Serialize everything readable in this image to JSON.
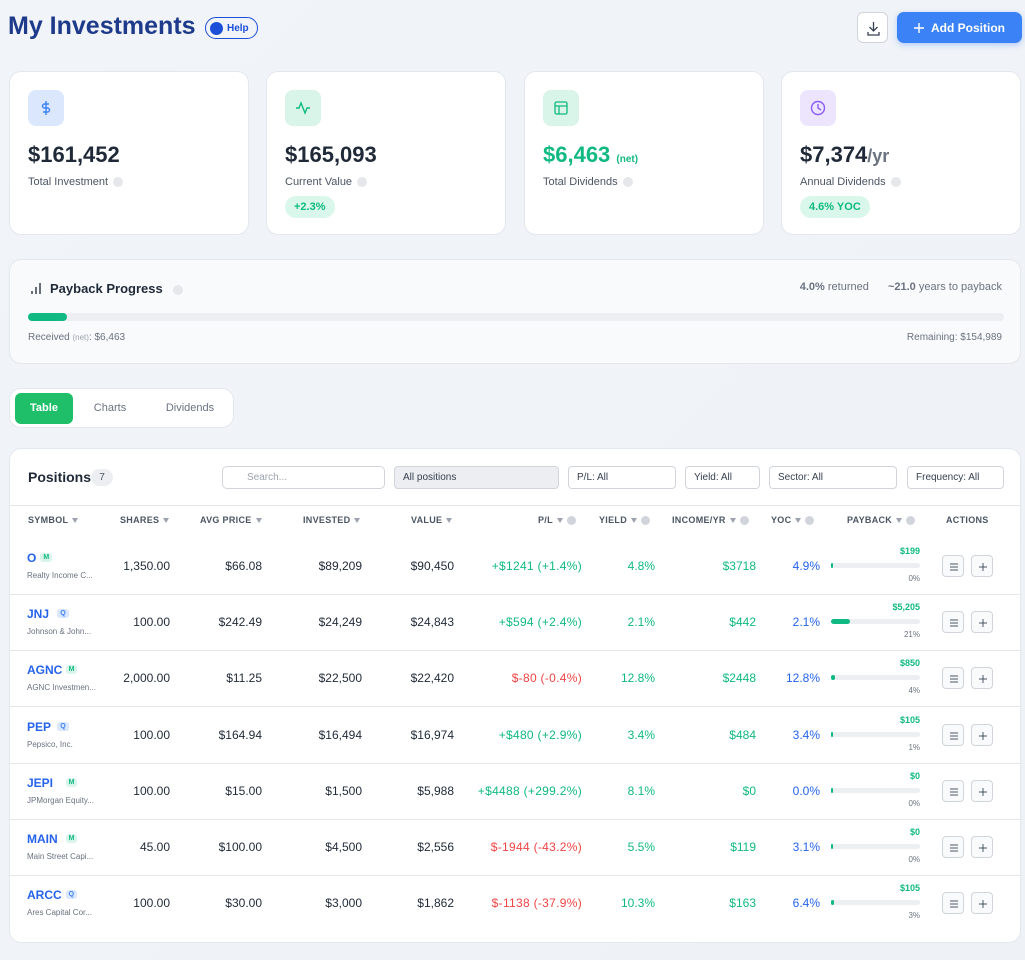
{
  "header": {
    "title": "My Investments",
    "help": "Help",
    "add_button": "Add Position"
  },
  "cards": [
    {
      "value": "$161,452",
      "label": "Total Investment"
    },
    {
      "value": "$165,093",
      "label": "Current Value",
      "badge": "+2.3%"
    },
    {
      "value": "$6,463",
      "suffix": "(net)",
      "label": "Total Dividends"
    },
    {
      "value": "$7,374",
      "suffix": "/yr",
      "label": "Annual Dividends",
      "badge": "4.6% YOC"
    }
  ],
  "payback": {
    "title": "Payback Progress",
    "returned": {
      "value": 4.0,
      "label": "4.0%"
    },
    "returned_text": "returned",
    "years": "~21.0",
    "years_text": "years to payback",
    "received_label": "Received",
    "received_net": "(net)",
    "received_value": ": $6,463",
    "remaining": "Remaining: $154,989"
  },
  "tabs": [
    "Table",
    "Charts",
    "Dividends"
  ],
  "positions": {
    "title": "Positions",
    "count": "7",
    "search": "Search...",
    "filters": [
      "All positions",
      "P/L: All",
      "Yield: All",
      "Sector: All",
      "Frequency: All"
    ],
    "columns": [
      "SYMBOL",
      "SHARES",
      "AVG PRICE",
      "INVESTED",
      "VALUE",
      "P/L",
      "YIELD",
      "INCOME/YR",
      "YOC",
      "PAYBACK",
      "ACTIONS"
    ],
    "rows": [
      {
        "symbol": "O",
        "freq": "M",
        "name": "Realty Income C...",
        "shares": "1,350.00",
        "avg_price": "$66.08",
        "invested": "$89,209",
        "value": "$90,450",
        "pl": "+$1241 (+1.4%)",
        "yield": "4.8%",
        "income": "$3718",
        "yoc": "4.9%",
        "payback_amount": "$199",
        "payback_pct": {
          "value": 0,
          "label": "0%"
        }
      },
      {
        "symbol": "JNJ",
        "freq": "Q",
        "name": "Johnson & John...",
        "shares": "100.00",
        "avg_price": "$242.49",
        "invested": "$24,249",
        "value": "$24,843",
        "pl": "+$594 (+2.4%)",
        "yield": "2.1%",
        "income": "$442",
        "yoc": "2.1%",
        "payback_amount": "$5,205",
        "payback_pct": {
          "value": 21,
          "label": "21%"
        }
      },
      {
        "symbol": "AGNC",
        "freq": "M",
        "name": "AGNC Investmen...",
        "shares": "2,000.00",
        "avg_price": "$11.25",
        "invested": "$22,500",
        "value": "$22,420",
        "pl": "$-80 (-0.4%)",
        "yield": "12.8%",
        "income": "$2448",
        "yoc": "12.8%",
        "payback_amount": "$850",
        "payback_pct": {
          "value": 4,
          "label": "4%"
        }
      },
      {
        "symbol": "PEP",
        "freq": "Q",
        "name": "Pepsico, Inc.",
        "shares": "100.00",
        "avg_price": "$164.94",
        "invested": "$16,494",
        "value": "$16,974",
        "pl": "+$480 (+2.9%)",
        "yield": "3.4%",
        "income": "$484",
        "yoc": "3.4%",
        "payback_amount": "$105",
        "payback_pct": {
          "value": 1,
          "label": "1%"
        }
      },
      {
        "symbol": "JEPI",
        "freq": "M",
        "name": "JPMorgan Equity...",
        "shares": "100.00",
        "avg_price": "$15.00",
        "invested": "$1,500",
        "value": "$5,988",
        "pl": "+$4488 (+299.2%)",
        "yield": "8.1%",
        "income": "$0",
        "yoc": "0.0%",
        "payback_amount": "$0",
        "payback_pct": {
          "value": 0,
          "label": "0%"
        }
      },
      {
        "symbol": "MAIN",
        "freq": "M",
        "name": "Main Street Capi...",
        "shares": "45.00",
        "avg_price": "$100.00",
        "invested": "$4,500",
        "value": "$2,556",
        "pl": "$-1944 (-43.2%)",
        "yield": "5.5%",
        "income": "$119",
        "yoc": "3.1%",
        "payback_amount": "$0",
        "payback_pct": {
          "value": 0,
          "label": "0%"
        }
      },
      {
        "symbol": "ARCC",
        "freq": "Q",
        "name": "Ares Capital Cor...",
        "shares": "100.00",
        "avg_price": "$30.00",
        "invested": "$3,000",
        "value": "$1,862",
        "pl": "$-1138 (-37.9%)",
        "yield": "10.3%",
        "income": "$163",
        "yoc": "6.4%",
        "payback_amount": "$105",
        "payback_pct": {
          "value": 3,
          "label": "3%"
        }
      }
    ]
  }
}
